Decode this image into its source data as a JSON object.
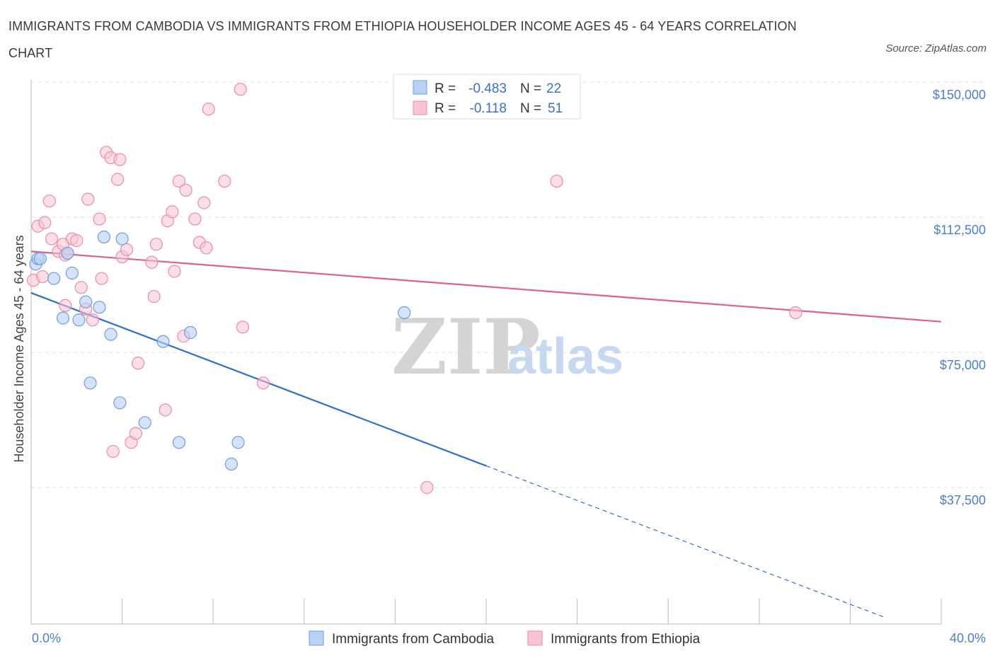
{
  "title": "IMMIGRANTS FROM CAMBODIA VS IMMIGRANTS FROM ETHIOPIA HOUSEHOLDER INCOME AGES 45 - 64 YEARS CORRELATION CHART",
  "source": "Source: ZipAtlas.com",
  "watermark": {
    "zip": "ZIP",
    "atlas": "atlas"
  },
  "colors": {
    "cambodia_fill": "#b8d1f5",
    "cambodia_stroke": "#6d9ee0",
    "cambodia_line": "#2f6fd0",
    "ethiopia_fill": "#f8c4d4",
    "ethiopia_stroke": "#ee8aa8",
    "ethiopia_line": "#e0608a",
    "tick_label": "#4a7fd0",
    "grid": "#dddddd"
  },
  "legend": {
    "rows": [
      {
        "r_label": "R =",
        "r_value": "-0.483",
        "n_label": "N =",
        "n_value": "22"
      },
      {
        "r_label": "R =",
        "r_value": "-0.118",
        "n_label": "N =",
        "n_value": "51"
      }
    ]
  },
  "chart_data": {
    "type": "scatter",
    "title": "IMMIGRANTS FROM CAMBODIA VS IMMIGRANTS FROM ETHIOPIA HOUSEHOLDER INCOME AGES 45 - 64 YEARS CORRELATION CHART",
    "xlabel": "",
    "ylabel": "Householder Income Ages 45 - 64 years",
    "xlim": [
      0,
      40
    ],
    "ylim": [
      0,
      150000
    ],
    "x_tick_labels": [
      "0.0%",
      "40.0%"
    ],
    "y_ticks": [
      37500,
      75000,
      112500,
      150000
    ],
    "y_tick_labels": [
      "$37,500",
      "$75,000",
      "$112,500",
      "$150,000"
    ],
    "grid": true,
    "legend_placement": "top-center and bottom",
    "series": [
      {
        "name": "Immigrants from Cambodia",
        "r": -0.483,
        "n": 22,
        "trend": {
          "x0": 0,
          "y0": 91500,
          "x1": 20,
          "y1": 43500,
          "dash_to_x": 37.5
        },
        "points": [
          [
            0.2,
            99500
          ],
          [
            0.3,
            101000
          ],
          [
            0.4,
            101000
          ],
          [
            1.0,
            95500
          ],
          [
            1.4,
            84500
          ],
          [
            1.6,
            102500
          ],
          [
            1.8,
            97000
          ],
          [
            2.1,
            84000
          ],
          [
            2.4,
            89000
          ],
          [
            2.6,
            66500
          ],
          [
            3.0,
            87500
          ],
          [
            3.2,
            107000
          ],
          [
            3.5,
            80000
          ],
          [
            3.9,
            61000
          ],
          [
            4.0,
            106500
          ],
          [
            5.0,
            55500
          ],
          [
            5.8,
            78000
          ],
          [
            6.5,
            50000
          ],
          [
            7.0,
            80500
          ],
          [
            8.8,
            44000
          ],
          [
            9.1,
            50000
          ],
          [
            16.4,
            86000
          ]
        ]
      },
      {
        "name": "Immigrants from Ethiopia",
        "r": -0.118,
        "n": 51,
        "trend": {
          "x0": 0,
          "y0": 103000,
          "x1": 40,
          "y1": 83500
        },
        "points": [
          [
            0.1,
            95000
          ],
          [
            0.3,
            110000
          ],
          [
            0.5,
            96000
          ],
          [
            0.6,
            111000
          ],
          [
            0.8,
            117000
          ],
          [
            0.9,
            106500
          ],
          [
            1.2,
            103000
          ],
          [
            1.4,
            105000
          ],
          [
            1.5,
            102000
          ],
          [
            1.6,
            102500
          ],
          [
            1.8,
            106500
          ],
          [
            2.0,
            106000
          ],
          [
            2.2,
            93000
          ],
          [
            2.4,
            87000
          ],
          [
            2.5,
            117500
          ],
          [
            2.7,
            84000
          ],
          [
            3.0,
            112000
          ],
          [
            3.1,
            95500
          ],
          [
            3.3,
            130500
          ],
          [
            3.5,
            129000
          ],
          [
            3.6,
            47500
          ],
          [
            3.8,
            123000
          ],
          [
            3.9,
            128500
          ],
          [
            4.0,
            101500
          ],
          [
            4.2,
            103500
          ],
          [
            4.4,
            50000
          ],
          [
            4.6,
            52500
          ],
          [
            4.7,
            72000
          ],
          [
            5.3,
            100000
          ],
          [
            5.4,
            90500
          ],
          [
            5.5,
            105000
          ],
          [
            5.9,
            59000
          ],
          [
            6.0,
            111500
          ],
          [
            6.2,
            114000
          ],
          [
            6.3,
            97500
          ],
          [
            6.5,
            122500
          ],
          [
            6.7,
            79500
          ],
          [
            6.8,
            120000
          ],
          [
            7.2,
            112000
          ],
          [
            7.4,
            105500
          ],
          [
            7.6,
            116500
          ],
          [
            7.7,
            104000
          ],
          [
            7.8,
            142500
          ],
          [
            8.5,
            122500
          ],
          [
            9.2,
            148000
          ],
          [
            9.3,
            82000
          ],
          [
            10.2,
            66500
          ],
          [
            17.4,
            37500
          ],
          [
            23.1,
            122500
          ],
          [
            33.6,
            86000
          ],
          [
            1.5,
            88000
          ]
        ]
      }
    ]
  }
}
